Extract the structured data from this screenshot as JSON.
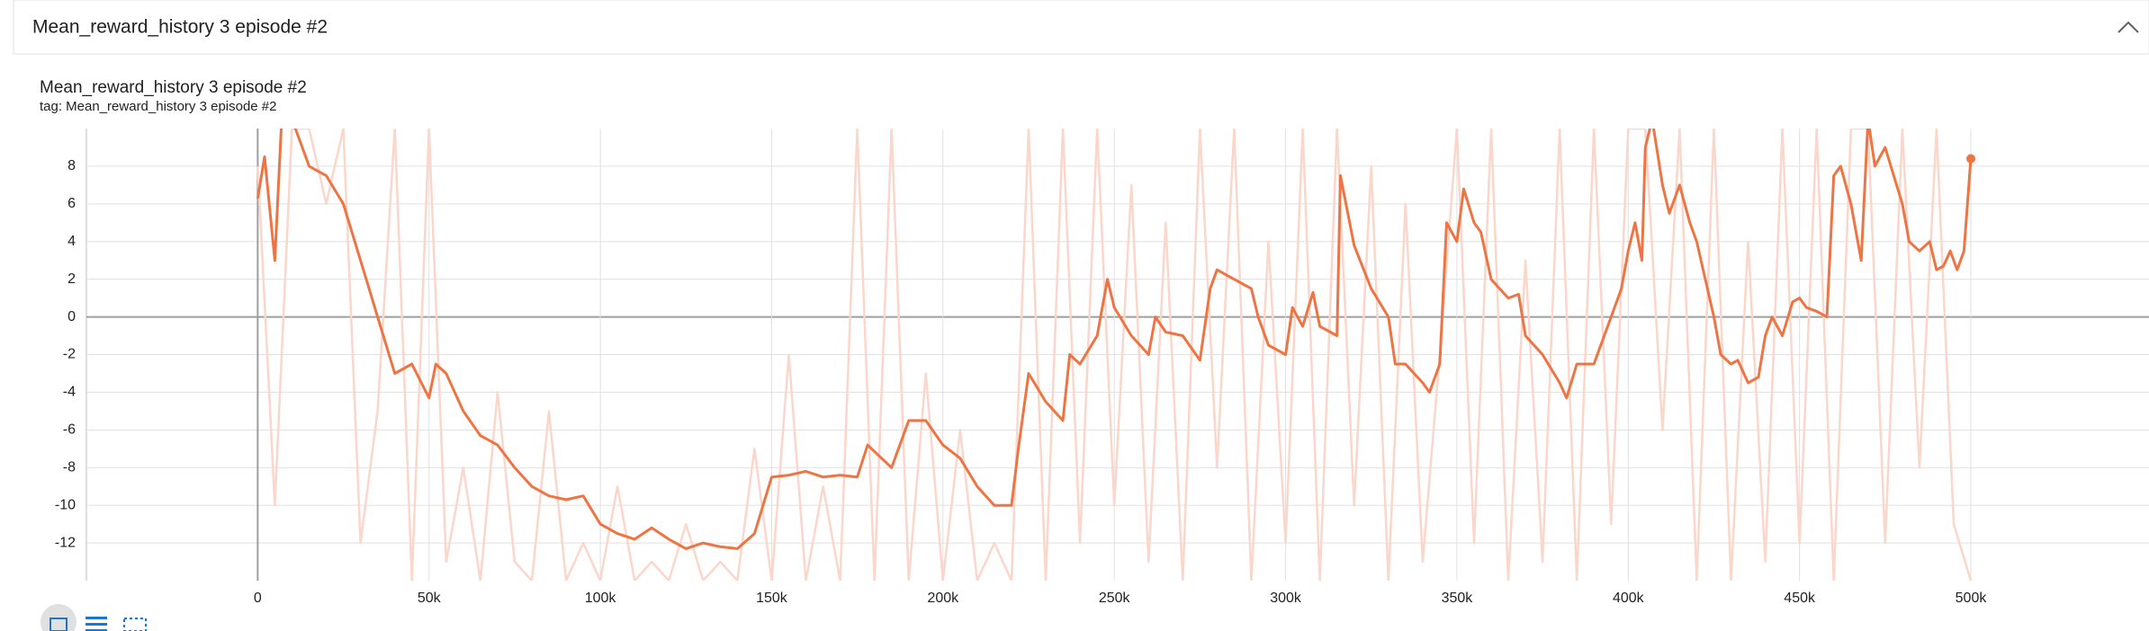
{
  "panel_title": "Mean_reward_history 3 episode #2",
  "chart_data": {
    "type": "line",
    "title": "Mean_reward_history 3 episode #2",
    "subtitle": "tag: Mean_reward_history 3 episode #2",
    "xlim": [
      -50000,
      552000
    ],
    "ylim": [
      -14,
      10
    ],
    "xticks": [
      0,
      {
        "value": 50000,
        "label": "50k"
      },
      {
        "value": 100000,
        "label": "100k"
      },
      {
        "value": 150000,
        "label": "150k"
      },
      {
        "value": 200000,
        "label": "200k"
      },
      {
        "value": 250000,
        "label": "250k"
      },
      {
        "value": 300000,
        "label": "300k"
      },
      {
        "value": 350000,
        "label": "350k"
      },
      {
        "value": 400000,
        "label": "400k"
      },
      {
        "value": 450000,
        "label": "450k"
      },
      {
        "value": 500000,
        "label": "500k"
      }
    ],
    "yticks": [
      -12,
      -10,
      -8,
      -6,
      -4,
      -2,
      0,
      2,
      4,
      6,
      8
    ],
    "grid": true,
    "series": [
      {
        "color": "#fbd6ca",
        "x": [
          0,
          5000,
          10000,
          15000,
          20000,
          25000,
          30000,
          35000,
          40000,
          45000,
          50000,
          55000,
          60000,
          65000,
          70000,
          75000,
          80000,
          85000,
          90000,
          95000,
          100000,
          105000,
          110000,
          115000,
          120000,
          125000,
          130000,
          135000,
          140000,
          145000,
          150000,
          155000,
          160000,
          165000,
          170000,
          175000,
          180000,
          185000,
          190000,
          195000,
          200000,
          205000,
          210000,
          215000,
          220000,
          225000,
          230000,
          235000,
          240000,
          245000,
          250000,
          255000,
          260000,
          265000,
          270000,
          275000,
          280000,
          285000,
          290000,
          295000,
          300000,
          305000,
          310000,
          315000,
          320000,
          325000,
          330000,
          335000,
          340000,
          345000,
          350000,
          355000,
          360000,
          365000,
          370000,
          375000,
          380000,
          385000,
          390000,
          395000,
          400000,
          405000,
          410000,
          415000,
          420000,
          425000,
          430000,
          435000,
          440000,
          445000,
          450000,
          455000,
          460000,
          465000,
          470000,
          475000,
          480000,
          485000,
          490000,
          495000,
          500000
        ],
        "values": [
          8,
          -10,
          10,
          10,
          6,
          10,
          -12,
          -5,
          10,
          -14,
          10,
          -13,
          -8,
          -14,
          -4,
          -13,
          -14,
          -5,
          -14,
          -12,
          -14,
          -9,
          -14,
          -13,
          -14,
          -11,
          -14,
          -13,
          -14,
          -7,
          -14,
          -2,
          -14,
          -9,
          -14,
          10,
          -14,
          10,
          -14,
          -3,
          -14,
          -6,
          -14,
          -12,
          -14,
          10,
          -14,
          10,
          -12,
          10,
          -10,
          7,
          -13,
          5,
          -14,
          10,
          -8,
          10,
          -14,
          4,
          -12,
          10,
          -14,
          10,
          -10,
          8,
          -14,
          6,
          -13,
          -2,
          10,
          -12,
          10,
          -14,
          3,
          -13,
          10,
          -14,
          10,
          -11,
          10,
          10,
          -6,
          10,
          -14,
          10,
          -14,
          4,
          -13,
          10,
          -12,
          10,
          -14,
          10,
          10,
          -12,
          10,
          -8,
          10,
          -11,
          -14
        ]
      },
      {
        "color": "#ef7443",
        "x": [
          0,
          2000,
          5000,
          7000,
          10000,
          15000,
          20000,
          25000,
          30000,
          35000,
          40000,
          45000,
          50000,
          52000,
          55000,
          60000,
          65000,
          70000,
          75000,
          80000,
          85000,
          90000,
          95000,
          100000,
          105000,
          110000,
          115000,
          120000,
          125000,
          130000,
          135000,
          140000,
          145000,
          150000,
          155000,
          160000,
          165000,
          170000,
          175000,
          178000,
          185000,
          190000,
          195000,
          200000,
          205000,
          210000,
          215000,
          220000,
          222000,
          225000,
          230000,
          235000,
          237000,
          240000,
          245000,
          248000,
          250000,
          255000,
          260000,
          262000,
          265000,
          270000,
          275000,
          278000,
          280000,
          285000,
          290000,
          292000,
          295000,
          300000,
          302000,
          305000,
          308000,
          310000,
          315000,
          316000,
          320000,
          325000,
          330000,
          332000,
          335000,
          340000,
          342000,
          345000,
          347000,
          350000,
          352000,
          355000,
          357000,
          360000,
          365000,
          368000,
          370000,
          375000,
          380000,
          382000,
          385000,
          390000,
          392000,
          395000,
          398000,
          400000,
          402000,
          404000,
          405000,
          407000,
          410000,
          412000,
          415000,
          418000,
          420000,
          425000,
          427000,
          430000,
          432000,
          435000,
          438000,
          440000,
          442000,
          445000,
          448000,
          450000,
          452000,
          455000,
          458000,
          460000,
          462000,
          465000,
          468000,
          470000,
          472000,
          475000,
          480000,
          482000,
          485000,
          488000,
          490000,
          492000,
          494000,
          496000,
          498000,
          500000
        ],
        "values": [
          6.3,
          8.5,
          3,
          10.5,
          10.5,
          8,
          7.5,
          6,
          3,
          0,
          -3,
          -2.5,
          -4.3,
          -2.5,
          -3,
          -5,
          -6.3,
          -6.8,
          -8,
          -9,
          -9.5,
          -9.7,
          -9.5,
          -11,
          -11.5,
          -11.8,
          -11.2,
          -11.8,
          -12.3,
          -12,
          -12.2,
          -12.3,
          -11.5,
          -8.5,
          -8.4,
          -8.2,
          -8.5,
          -8.4,
          -8.5,
          -6.8,
          -8,
          -5.5,
          -5.5,
          -6.8,
          -7.5,
          -9,
          -10,
          -10,
          -7,
          -3,
          -4.5,
          -5.5,
          -2,
          -2.5,
          -1,
          2,
          0.5,
          -1,
          -2,
          0,
          -0.8,
          -1,
          -2.3,
          1.5,
          2.5,
          2,
          1.5,
          0,
          -1.5,
          -2,
          0.5,
          -0.5,
          1.3,
          -0.5,
          -1,
          7.5,
          3.8,
          1.5,
          0,
          -2.5,
          -2.5,
          -3.5,
          -4,
          -2.5,
          5,
          4,
          6.8,
          5,
          4.5,
          2,
          1,
          1.2,
          -1,
          -2,
          -3.5,
          -4.3,
          -2.5,
          -2.5,
          -1.5,
          0,
          1.5,
          3.5,
          5,
          3,
          9,
          10.5,
          7,
          5.5,
          7,
          5,
          4,
          0,
          -2,
          -2.5,
          -2.3,
          -3.5,
          -3.2,
          -1,
          0,
          -1,
          0.8,
          1,
          0.5,
          0.3,
          0,
          7.5,
          8,
          6,
          3,
          10.5,
          8,
          9,
          6,
          4,
          3.5,
          4,
          2.5,
          2.7,
          3.5,
          2.5,
          3.5,
          8.4
        ]
      }
    ]
  }
}
